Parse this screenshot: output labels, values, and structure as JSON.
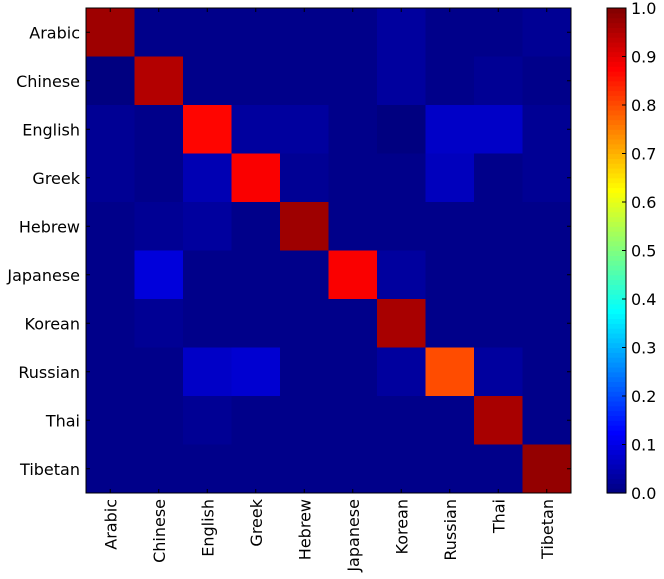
{
  "chart_data": {
    "type": "heatmap",
    "title": "",
    "xlabel": "",
    "ylabel": "",
    "rows": [
      "Arabic",
      "Chinese",
      "English",
      "Greek",
      "Hebrew",
      "Japanese",
      "Korean",
      "Russian",
      "Thai",
      "Tibetan"
    ],
    "columns": [
      "Arabic",
      "Chinese",
      "English",
      "Greek",
      "Hebrew",
      "Japanese",
      "Korean",
      "Russian",
      "Thai",
      "Tibetan"
    ],
    "values": [
      [
        0.97,
        0.01,
        0.01,
        0.01,
        0.01,
        0.01,
        0.03,
        0.01,
        0.01,
        0.02
      ],
      [
        0.0,
        0.95,
        0.01,
        0.01,
        0.01,
        0.01,
        0.03,
        0.01,
        0.02,
        0.01
      ],
      [
        0.02,
        0.01,
        0.87,
        0.03,
        0.03,
        0.01,
        0.0,
        0.07,
        0.07,
        0.02
      ],
      [
        0.02,
        0.01,
        0.05,
        0.88,
        0.02,
        0.01,
        0.01,
        0.06,
        0.01,
        0.02
      ],
      [
        0.01,
        0.02,
        0.03,
        0.01,
        0.97,
        0.01,
        0.01,
        0.01,
        0.01,
        0.01
      ],
      [
        0.01,
        0.09,
        0.01,
        0.01,
        0.01,
        0.88,
        0.03,
        0.01,
        0.01,
        0.01
      ],
      [
        0.01,
        0.02,
        0.01,
        0.01,
        0.01,
        0.01,
        0.96,
        0.01,
        0.01,
        0.01
      ],
      [
        0.01,
        0.01,
        0.07,
        0.08,
        0.01,
        0.01,
        0.03,
        0.8,
        0.03,
        0.01
      ],
      [
        0.01,
        0.01,
        0.02,
        0.01,
        0.01,
        0.01,
        0.01,
        0.01,
        0.96,
        0.01
      ],
      [
        0.01,
        0.01,
        0.01,
        0.01,
        0.01,
        0.01,
        0.01,
        0.01,
        0.01,
        0.98
      ]
    ],
    "colormap": "jet",
    "vmin": 0.0,
    "vmax": 1.0,
    "colorbar_ticks": [
      "0.0",
      "0.1",
      "0.2",
      "0.3",
      "0.4",
      "0.5",
      "0.6",
      "0.7",
      "0.8",
      "0.9",
      "1.0"
    ],
    "colorbar_tick_values": [
      0.0,
      0.1,
      0.2,
      0.3,
      0.4,
      0.5,
      0.6,
      0.7,
      0.8,
      0.9,
      1.0
    ]
  }
}
